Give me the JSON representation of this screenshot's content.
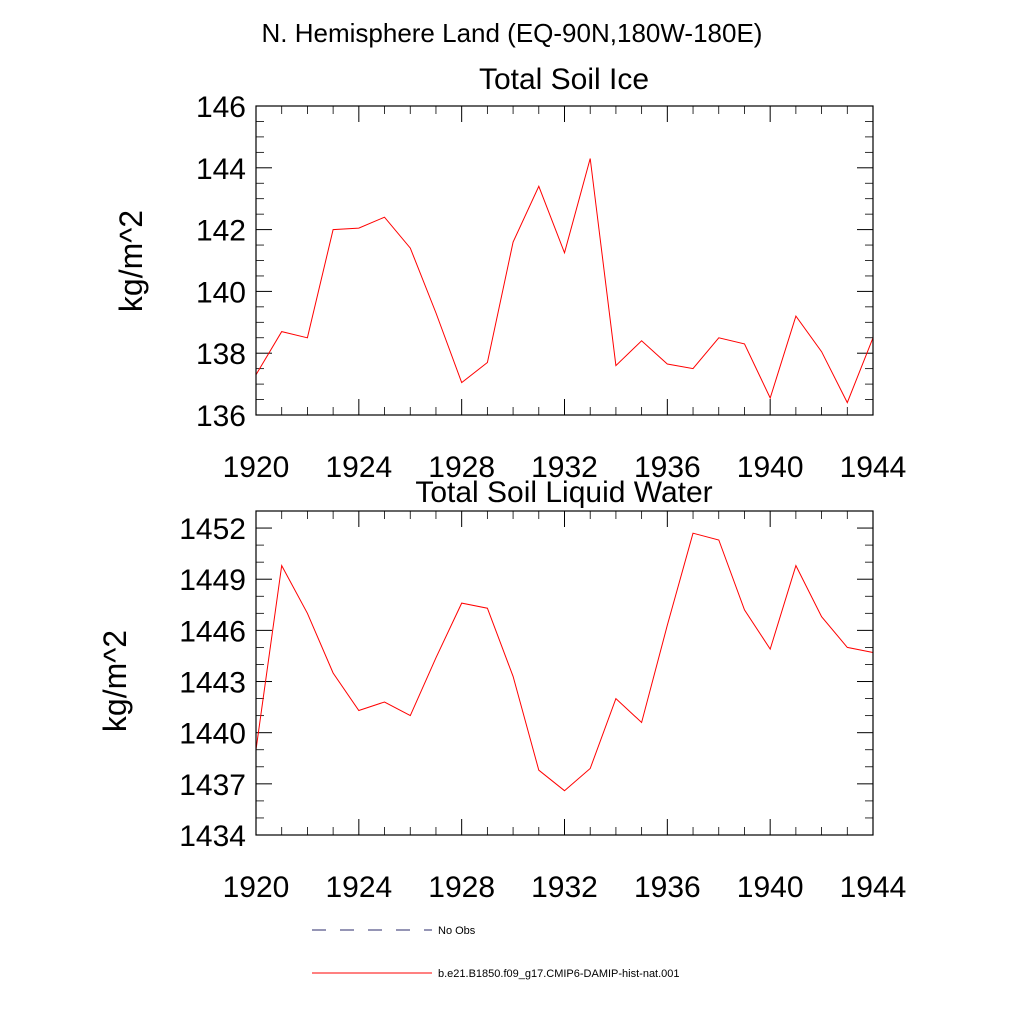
{
  "figure_title": "N. Hemisphere Land (EQ-90N,180W-180E)",
  "legend": {
    "items": [
      {
        "label": "No Obs",
        "color": "#2b2b6b",
        "style": "dashed"
      },
      {
        "label": "b.e21.B1850.f09_g17.CMIP6-DAMIP-hist-nat.001",
        "color": "#ff0000",
        "style": "solid"
      }
    ]
  },
  "chart_data": [
    {
      "type": "line",
      "title": "Total Soil Ice",
      "xlabel": "",
      "ylabel": "kg/m^2",
      "xlim": [
        1920,
        1944
      ],
      "ylim": [
        136,
        146
      ],
      "xticks": [
        1920,
        1924,
        1928,
        1932,
        1936,
        1940,
        1944
      ],
      "yticks": [
        136,
        138,
        140,
        142,
        144,
        146
      ],
      "x": [
        1920,
        1921,
        1922,
        1923,
        1924,
        1925,
        1926,
        1927,
        1928,
        1929,
        1930,
        1931,
        1932,
        1933,
        1934,
        1935,
        1936,
        1937,
        1938,
        1939,
        1940,
        1941,
        1942,
        1943,
        1944
      ],
      "series": [
        {
          "values": [
            137.3,
            138.7,
            138.5,
            142.0,
            142.05,
            142.4,
            141.4,
            139.3,
            137.05,
            137.7,
            141.6,
            143.4,
            141.25,
            144.3,
            137.6,
            138.4,
            137.65,
            137.5,
            138.5,
            138.3,
            136.55,
            139.2,
            138.05,
            136.4,
            138.5
          ]
        }
      ],
      "color": "#ff0000"
    },
    {
      "type": "line",
      "title": "Total Soil Liquid Water",
      "xlabel": "",
      "ylabel": "kg/m^2",
      "xlim": [
        1920,
        1944
      ],
      "ylim": [
        1434,
        1453
      ],
      "xticks": [
        1920,
        1924,
        1928,
        1932,
        1936,
        1940,
        1944
      ],
      "yticks": [
        1434,
        1437,
        1440,
        1443,
        1446,
        1449,
        1452
      ],
      "x": [
        1920,
        1921,
        1922,
        1923,
        1924,
        1925,
        1926,
        1927,
        1928,
        1929,
        1930,
        1931,
        1932,
        1933,
        1934,
        1935,
        1936,
        1937,
        1938,
        1939,
        1940,
        1941,
        1942,
        1943,
        1944
      ],
      "series": [
        {
          "values": [
            1439.0,
            1449.8,
            1447.0,
            1443.5,
            1441.3,
            1441.8,
            1441.0,
            1444.4,
            1447.6,
            1447.3,
            1443.3,
            1437.8,
            1436.6,
            1437.9,
            1442.0,
            1440.6,
            1446.3,
            1451.7,
            1451.3,
            1447.2,
            1444.9,
            1449.8,
            1446.8,
            1445.0,
            1444.7
          ]
        }
      ],
      "color": "#ff0000"
    }
  ]
}
